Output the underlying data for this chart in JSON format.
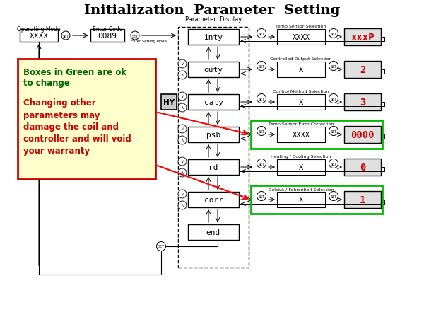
{
  "title": "Initialization  Parameter  Setting",
  "title_fontsize": 14,
  "bg_color": "#ffffff",
  "param_display_label": "Parameter  Display",
  "operating_mode_label": "Operating Mode",
  "enter_code_label": "Enter Code",
  "enter_setting_mode_label": "Enter Setting Mode",
  "left_box_text": "XXXX",
  "code_box_text": "0089",
  "param_boxes": [
    "inty",
    "outy",
    "caty",
    "psb",
    "rd",
    "corr",
    "end"
  ],
  "right_labels": [
    "Temp Sensor Selection",
    "Controlled Output Selection",
    "Control Method Selection",
    "Temp Sensor Error Correction",
    "Heating / Cooling Selection",
    "Celsius / Fahrenheit Selection"
  ],
  "right_values": [
    "xxxP",
    "2",
    "3",
    "0000",
    "0",
    "1"
  ],
  "right_value_colors": [
    "#cc0000",
    "#cc0000",
    "#cc0000",
    "#cc0000",
    "#cc0000",
    "#cc0000"
  ],
  "right_sensor_texts": [
    "XXXX",
    "X",
    "X",
    "XXXX",
    "X",
    "X"
  ],
  "green_rows": [
    3,
    5
  ],
  "hy_box_text": "HY",
  "callout_lines_green": [
    "Boxes in Green are ok",
    "to change"
  ],
  "callout_lines_red": [
    "Changing other",
    "parameters may",
    "damage the coil and",
    "controller and will void",
    "your warranty"
  ],
  "callout_bg": "#ffffcc",
  "callout_border": "#cc0000",
  "callout_green_color": "#006600",
  "callout_red_color": "#cc0000"
}
